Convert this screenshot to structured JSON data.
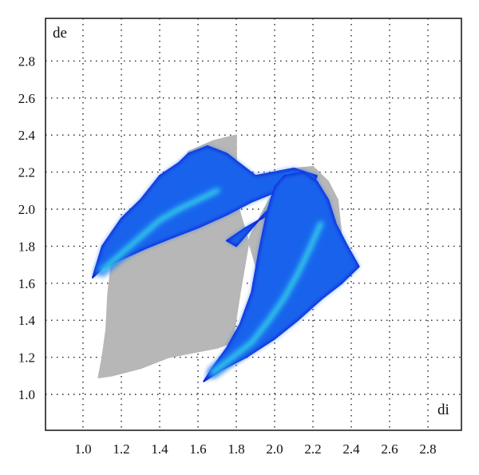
{
  "chart_data": {
    "type": "heatmap",
    "subtype": "hirshfeld-fingerprint-plot",
    "title": "",
    "xlabel": "di",
    "ylabel": "de",
    "xlim": [
      0.8,
      3.0
    ],
    "ylim": [
      0.8,
      3.0
    ],
    "x_ticks": [
      "1.0",
      "1.2",
      "1.4",
      "1.6",
      "1.8",
      "2.0",
      "2.2",
      "2.4",
      "2.6",
      "2.8"
    ],
    "y_ticks": [
      "1.0",
      "1.2",
      "1.4",
      "1.6",
      "1.8",
      "2.0",
      "2.2",
      "2.4",
      "2.6",
      "2.8"
    ],
    "grid": true,
    "colors": {
      "background_points": "#b7b7b7",
      "highlight_low": "#0a1bd6",
      "highlight_mid": "#1f6ff0",
      "highlight_high": "#35d8e8",
      "grid": "#222222"
    },
    "regions": [
      {
        "name": "background",
        "color": "#b7b7b7",
        "outline": [
          [
            1.08,
            1.09
          ],
          [
            1.15,
            1.1
          ],
          [
            1.3,
            1.14
          ],
          [
            1.45,
            1.2
          ],
          [
            1.6,
            1.23
          ],
          [
            1.7,
            1.25
          ],
          [
            1.78,
            1.28
          ],
          [
            1.82,
            1.55
          ],
          [
            1.87,
            1.85
          ],
          [
            1.97,
            2.05
          ],
          [
            2.1,
            2.22
          ],
          [
            2.2,
            2.23
          ],
          [
            2.28,
            2.15
          ],
          [
            2.33,
            2.05
          ],
          [
            2.35,
            1.85
          ],
          [
            2.3,
            1.65
          ],
          [
            2.15,
            1.5
          ],
          [
            1.93,
            1.45
          ],
          [
            1.9,
            1.7
          ],
          [
            1.8,
            2.05
          ],
          [
            1.8,
            2.3
          ],
          [
            1.8,
            2.4
          ],
          [
            1.68,
            2.37
          ],
          [
            1.55,
            2.31
          ],
          [
            1.5,
            2.2
          ],
          [
            1.45,
            2.0
          ],
          [
            1.35,
            1.8
          ],
          [
            1.22,
            1.75
          ],
          [
            1.15,
            1.72
          ],
          [
            1.13,
            1.55
          ],
          [
            1.12,
            1.35
          ],
          [
            1.1,
            1.2
          ]
        ]
      },
      {
        "name": "upper-left-wing",
        "color": "#1f6ff0",
        "outline": [
          [
            1.05,
            1.63
          ],
          [
            1.1,
            1.68
          ],
          [
            1.2,
            1.73
          ],
          [
            1.33,
            1.79
          ],
          [
            1.45,
            1.84
          ],
          [
            1.6,
            1.9
          ],
          [
            1.75,
            1.97
          ],
          [
            1.88,
            2.04
          ],
          [
            2.0,
            2.09
          ],
          [
            2.12,
            2.11
          ],
          [
            2.2,
            2.11
          ],
          [
            2.15,
            2.06
          ],
          [
            2.0,
            1.99
          ],
          [
            1.85,
            1.9
          ],
          [
            1.75,
            1.83
          ],
          [
            1.8,
            1.8
          ],
          [
            1.85,
            1.86
          ],
          [
            1.95,
            1.98
          ],
          [
            2.05,
            2.06
          ],
          [
            2.2,
            2.12
          ],
          [
            2.22,
            2.18
          ],
          [
            2.1,
            2.22
          ],
          [
            1.9,
            2.18
          ],
          [
            1.75,
            2.3
          ],
          [
            1.65,
            2.34
          ],
          [
            1.55,
            2.3
          ],
          [
            1.5,
            2.25
          ],
          [
            1.4,
            2.18
          ],
          [
            1.3,
            2.05
          ],
          [
            1.2,
            1.95
          ],
          [
            1.1,
            1.8
          ]
        ]
      },
      {
        "name": "lower-right-wing",
        "color": "#1f6ff0",
        "outline": [
          [
            1.63,
            1.07
          ],
          [
            1.72,
            1.13
          ],
          [
            1.85,
            1.2
          ],
          [
            2.0,
            1.3
          ],
          [
            2.12,
            1.4
          ],
          [
            2.25,
            1.52
          ],
          [
            2.35,
            1.6
          ],
          [
            2.44,
            1.69
          ],
          [
            2.38,
            1.8
          ],
          [
            2.32,
            1.92
          ],
          [
            2.28,
            2.05
          ],
          [
            2.22,
            2.15
          ],
          [
            2.15,
            2.2
          ],
          [
            2.05,
            2.18
          ],
          [
            2.0,
            2.12
          ],
          [
            1.96,
            1.98
          ],
          [
            1.92,
            1.78
          ],
          [
            1.88,
            1.55
          ],
          [
            1.82,
            1.38
          ],
          [
            1.75,
            1.25
          ],
          [
            1.68,
            1.15
          ]
        ]
      }
    ],
    "ridges": [
      {
        "name": "upper-left-ridge",
        "color": "#35d8e8",
        "points": [
          [
            1.1,
            1.67
          ],
          [
            1.2,
            1.76
          ],
          [
            1.3,
            1.85
          ],
          [
            1.4,
            1.94
          ],
          [
            1.5,
            2.0
          ],
          [
            1.6,
            2.05
          ],
          [
            1.7,
            2.1
          ]
        ]
      },
      {
        "name": "lower-right-ridge",
        "color": "#35d8e8",
        "points": [
          [
            1.68,
            1.12
          ],
          [
            1.78,
            1.2
          ],
          [
            1.88,
            1.28
          ],
          [
            1.97,
            1.4
          ],
          [
            2.05,
            1.52
          ],
          [
            2.12,
            1.65
          ],
          [
            2.18,
            1.78
          ],
          [
            2.24,
            1.92
          ]
        ]
      }
    ]
  }
}
